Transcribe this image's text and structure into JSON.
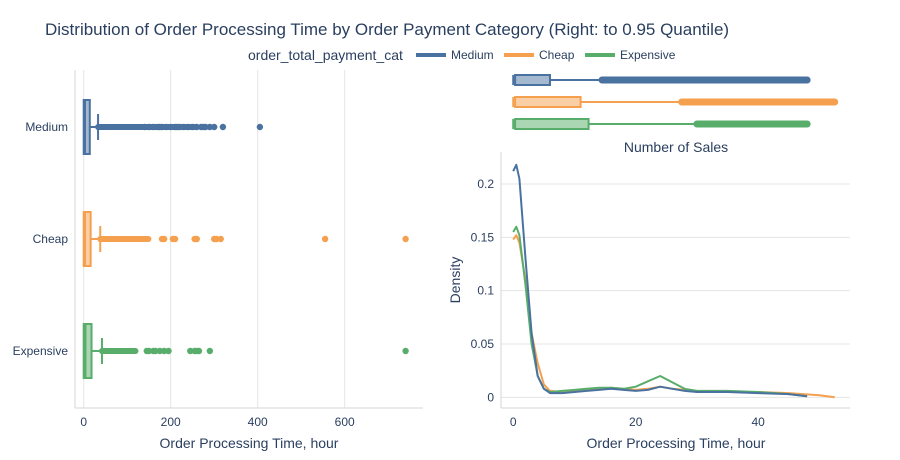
{
  "title": "Distribution of Order Processing Time by Order Payment Category (Right: to 0.95 Quantile)",
  "legend": {
    "title": "order_total_payment_cat",
    "items": [
      "Medium",
      "Cheap",
      "Expensive"
    ]
  },
  "colors": {
    "Medium": "#4a72a0",
    "Cheap": "#f5a04e",
    "Expensive": "#58ad6a"
  },
  "chart_data": [
    {
      "type": "box",
      "orientation": "horizontal",
      "categories": [
        "Medium",
        "Cheap",
        "Expensive"
      ],
      "xlabel": "Order Processing Time, hour",
      "ylabel": "",
      "xlim": [
        -20,
        780
      ],
      "xticks": [
        0,
        200,
        400,
        600
      ],
      "grid": true,
      "series": [
        {
          "name": "Medium",
          "min": 0,
          "q1": 0,
          "median": 3,
          "q3": 14,
          "upper_fence": 33,
          "outlier_range": [
            33,
            300
          ],
          "outliers": [
            140,
            150,
            160,
            170,
            175,
            180,
            190,
            200,
            210,
            215,
            220,
            230,
            240,
            250,
            260,
            270,
            275,
            280,
            290,
            300,
            320,
            405
          ]
        },
        {
          "name": "Cheap",
          "min": 0,
          "q1": 0,
          "median": 3,
          "q3": 16,
          "upper_fence": 38,
          "outlier_range": [
            38,
            175
          ],
          "outliers": [
            180,
            185,
            205,
            210,
            255,
            260,
            300,
            305,
            315,
            555,
            740
          ]
        },
        {
          "name": "Expensive",
          "min": 0,
          "q1": 0,
          "median": 4,
          "q3": 18,
          "upper_fence": 42,
          "outlier_range": [
            42,
            140
          ],
          "outliers": [
            145,
            150,
            160,
            165,
            175,
            185,
            195,
            245,
            255,
            260,
            265,
            290,
            740
          ]
        }
      ]
    },
    {
      "type": "box",
      "orientation": "horizontal",
      "categories": [
        "Medium",
        "Cheap",
        "Expensive"
      ],
      "xlim": [
        -2,
        55
      ],
      "series": [
        {
          "name": "Medium",
          "min": 0,
          "q1": 0.3,
          "q3": 6,
          "upper_fence": 14.5,
          "outlier_range": [
            14.5,
            48
          ]
        },
        {
          "name": "Cheap",
          "min": 0,
          "q1": 0.3,
          "q3": 11,
          "upper_fence": 27.5,
          "outlier_range": [
            27.5,
            52.5
          ]
        },
        {
          "name": "Expensive",
          "min": 0,
          "q1": 0.3,
          "q3": 12.3,
          "upper_fence": 30,
          "outlier_range": [
            30,
            48
          ]
        }
      ]
    },
    {
      "type": "line",
      "title": "Number of Sales",
      "xlabel": "Order Processing Time, hour",
      "ylabel": "Density",
      "xlim": [
        -2,
        55
      ],
      "ylim": [
        -0.01,
        0.23
      ],
      "xticks": [
        0,
        20,
        40
      ],
      "yticks": [
        0,
        0.05,
        0.1,
        0.15,
        0.2
      ],
      "ytick_labels": [
        "0",
        "0.05",
        "0.1",
        "0.15",
        "0.2"
      ],
      "grid": true,
      "series": [
        {
          "name": "Medium",
          "x": [
            0,
            0.5,
            1,
            2,
            3,
            4,
            5,
            6,
            8,
            10,
            12,
            14,
            16,
            18,
            20,
            22,
            24,
            26,
            28,
            30,
            35,
            40,
            45,
            48
          ],
          "y": [
            0.212,
            0.218,
            0.205,
            0.13,
            0.06,
            0.02,
            0.008,
            0.004,
            0.004,
            0.005,
            0.006,
            0.007,
            0.008,
            0.007,
            0.006,
            0.007,
            0.01,
            0.008,
            0.006,
            0.005,
            0.005,
            0.004,
            0.003,
            0.001
          ]
        },
        {
          "name": "Cheap",
          "x": [
            0,
            0.5,
            1,
            2,
            3,
            4,
            5,
            6,
            8,
            10,
            12,
            14,
            16,
            18,
            20,
            22,
            24,
            26,
            28,
            30,
            35,
            40,
            45,
            50,
            52.5
          ],
          "y": [
            0.148,
            0.152,
            0.145,
            0.11,
            0.06,
            0.032,
            0.012,
            0.006,
            0.005,
            0.006,
            0.007,
            0.008,
            0.009,
            0.008,
            0.007,
            0.008,
            0.01,
            0.008,
            0.007,
            0.006,
            0.005,
            0.005,
            0.004,
            0.002,
            0.0
          ]
        },
        {
          "name": "Expensive",
          "x": [
            0,
            0.5,
            1,
            2,
            3,
            4,
            5,
            6,
            8,
            10,
            12,
            14,
            16,
            18,
            20,
            22,
            24,
            26,
            28,
            30,
            35,
            40,
            45,
            48
          ],
          "y": [
            0.155,
            0.16,
            0.152,
            0.105,
            0.05,
            0.02,
            0.008,
            0.005,
            0.006,
            0.007,
            0.008,
            0.009,
            0.009,
            0.008,
            0.01,
            0.015,
            0.02,
            0.014,
            0.008,
            0.006,
            0.006,
            0.005,
            0.003,
            0.001
          ]
        }
      ]
    }
  ]
}
